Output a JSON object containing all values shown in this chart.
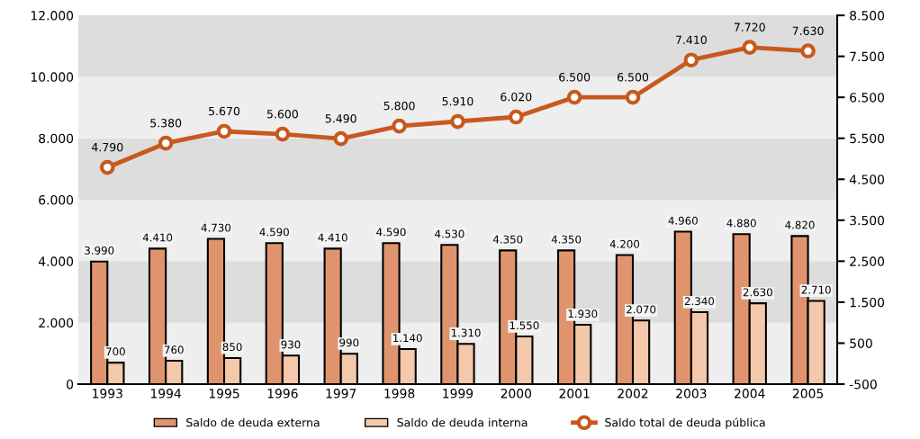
{
  "chart_data": {
    "type": "bar",
    "categories": [
      "1993",
      "1994",
      "1995",
      "1996",
      "1997",
      "1998",
      "1999",
      "2000",
      "2001",
      "2002",
      "2003",
      "2004",
      "2005"
    ],
    "series": [
      {
        "name": "Saldo de deuda externa",
        "color": "#e0946e",
        "values": [
          3990,
          4410,
          4730,
          4590,
          4410,
          4590,
          4530,
          4350,
          4350,
          4200,
          4960,
          4880,
          4820
        ],
        "value_labels": [
          "3.990",
          "4.410",
          "4.730",
          "4.590",
          "4.410",
          "4.590",
          "4.530",
          "4.350",
          "4.350",
          "4.200",
          "4.960",
          "4.880",
          "4.820"
        ]
      },
      {
        "name": "Saldo de deuda interna",
        "color": "#f4c8ab",
        "values": [
          700,
          760,
          850,
          930,
          990,
          1140,
          1310,
          1550,
          1930,
          2070,
          2340,
          2630,
          2710
        ],
        "value_labels": [
          "700",
          "760",
          "850",
          "930",
          "990",
          "1.140",
          "1.310",
          "1.550",
          "1.930",
          "2.070",
          "2.340",
          "2.630",
          "2.710"
        ]
      },
      {
        "name": "Saldo total de deuda pública",
        "type": "line",
        "axis": "y2",
        "color": "#c8591e",
        "marker": "circle",
        "values": [
          4790,
          5380,
          5670,
          5600,
          5490,
          5800,
          5910,
          6020,
          6500,
          6500,
          7410,
          7720,
          7630
        ],
        "value_labels": [
          "4.790",
          "5.380",
          "5.670",
          "5.600",
          "5.490",
          "5.800",
          "5.910",
          "6.020",
          "6.500",
          "6.500",
          "7.410",
          "7.720",
          "7.630"
        ]
      }
    ],
    "ylim": [
      0,
      12000
    ],
    "yticks": [
      0,
      {
        "value": 2000,
        "label": "2.000"
      },
      {
        "value": 4000,
        "label": "4.000"
      },
      {
        "value": 6000,
        "label": "6.000"
      },
      {
        "value": 8000,
        "label": "8.000"
      },
      {
        "value": 10000,
        "label": "10.000"
      },
      {
        "value": 12000,
        "label": "12.000"
      }
    ],
    "y2lim": [
      -500,
      8500
    ],
    "y2ticks": [
      -500,
      500,
      {
        "value": 1500,
        "label": "1.500"
      },
      {
        "value": 2500,
        "label": "2.500"
      },
      {
        "value": 3500,
        "label": "3.500"
      },
      {
        "value": 4500,
        "label": "4.500"
      },
      {
        "value": 5500,
        "label": "5.500"
      },
      {
        "value": 6500,
        "label": "6.500"
      },
      {
        "value": 7500,
        "label": "7.500"
      },
      {
        "value": 8500,
        "label": "8.500"
      }
    ],
    "bands": [
      {
        "axis": "y",
        "from": 0,
        "to": 2000,
        "color": "#eeeeee"
      },
      {
        "axis": "y",
        "from": 2000,
        "to": 4000,
        "color": "#dddddd"
      },
      {
        "axis": "y",
        "from": 4000,
        "to": 6000,
        "color": "#eeeeee"
      },
      {
        "axis": "y",
        "from": 6000,
        "to": 8000,
        "color": "#dddddd"
      },
      {
        "axis": "y",
        "from": 8000,
        "to": 10000,
        "color": "#eeeeee"
      },
      {
        "axis": "y",
        "from": 10000,
        "to": 12000,
        "color": "#dddddd"
      }
    ],
    "legend": "bottom"
  }
}
